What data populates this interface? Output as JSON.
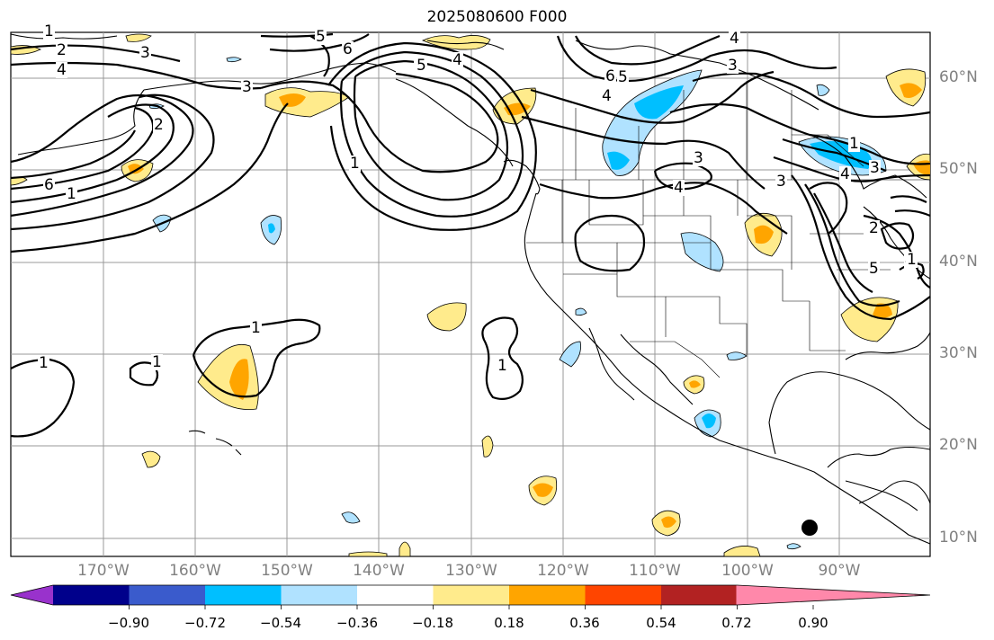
{
  "title": "2025080600 F000",
  "lat_labels": [
    "60°N",
    "50°N",
    "40°N",
    "30°N",
    "20°N",
    "10°N"
  ],
  "lon_labels": [
    "170°W",
    "160°W",
    "150°W",
    "140°W",
    "130°W",
    "120°W",
    "110°W",
    "100°W",
    "90°W"
  ],
  "colorbar": {
    "ticks": [
      "−0.90",
      "−0.72",
      "−0.54",
      "−0.36",
      "−0.18",
      "0.18",
      "0.36",
      "0.54",
      "0.72",
      "0.90"
    ],
    "colors": [
      "#9932cc",
      "#00008b",
      "#3a5bcc",
      "#00bfff",
      "#b0e2ff",
      "#ffffff",
      "#ffeb8c",
      "#ffa500",
      "#ff4500",
      "#b22222",
      "#ff88aa"
    ]
  },
  "contour_labels": [
    "1",
    "2",
    "3",
    "4",
    "5",
    "6",
    "5",
    "4",
    "3",
    "2",
    "1",
    "5",
    "6",
    "1",
    "1",
    "1",
    "1",
    "1",
    "4",
    "5",
    "6",
    "4",
    "3",
    "4",
    "3",
    "1",
    "3",
    "4",
    "5",
    "4",
    "3",
    "2",
    "1"
  ],
  "marker": "black-dot"
}
